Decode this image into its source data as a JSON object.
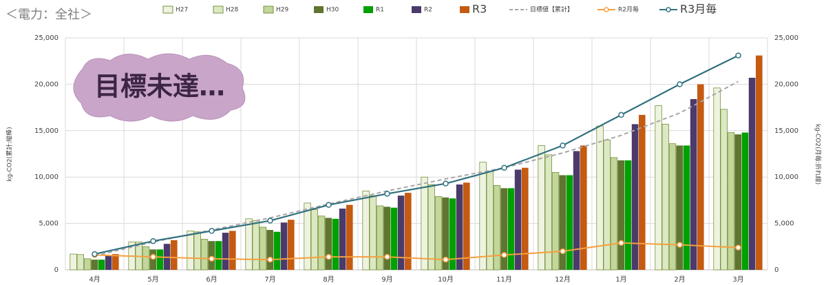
{
  "chart_data": {
    "type": "bar",
    "title": "＜電力：全社＞",
    "annotation": "目標未達…",
    "y_label": "kg-CO2(累計:縦棒)",
    "y2_label": "kg-CO2(月毎:折れ線)",
    "categories": [
      "4月",
      "5月",
      "6月",
      "7月",
      "8月",
      "9月",
      "10月",
      "11月",
      "12月",
      "1月",
      "2月",
      "3月"
    ],
    "series": [
      {
        "name": "H27",
        "type": "bar",
        "color": "#eef3df",
        "values": [
          1700,
          3000,
          4200,
          5500,
          7200,
          8500,
          10000,
          11600,
          13400,
          15500,
          17700,
          19600
        ]
      },
      {
        "name": "H28",
        "type": "bar",
        "color": "#dce8c3",
        "values": [
          1650,
          3000,
          4100,
          5300,
          6500,
          8000,
          9200,
          10600,
          12400,
          14000,
          15700,
          17300
        ]
      },
      {
        "name": "H29",
        "type": "bar",
        "color": "#c3d69b",
        "values": [
          1200,
          2500,
          3300,
          4600,
          5800,
          6900,
          7900,
          9100,
          10500,
          12100,
          13600,
          14800
        ]
      },
      {
        "name": "H30",
        "type": "bar",
        "color": "#5f7530",
        "values": [
          1100,
          2200,
          3100,
          4300,
          5600,
          6800,
          7800,
          8800,
          10200,
          11800,
          13400,
          14600
        ]
      },
      {
        "name": "R1",
        "type": "bar",
        "color": "#00a000",
        "values": [
          1100,
          2200,
          3100,
          4100,
          5500,
          6700,
          7700,
          8800,
          10200,
          11800,
          13400,
          14800
        ]
      },
      {
        "name": "R2",
        "type": "bar",
        "color": "#4b3a6a",
        "values": [
          1500,
          2800,
          4000,
          5100,
          6600,
          8000,
          9200,
          10800,
          12800,
          15700,
          18400,
          20700
        ]
      },
      {
        "name": "R3",
        "type": "bar",
        "color": "#c55a11",
        "values": [
          1700,
          3200,
          4200,
          5400,
          7000,
          8300,
          9400,
          11000,
          13400,
          16700,
          20000,
          23100
        ]
      },
      {
        "name": "目標値【累計】",
        "type": "line",
        "dash": true,
        "color": "#a6a6a6",
        "values": [
          1500,
          3000,
          4300,
          5600,
          7100,
          8500,
          9800,
          11000,
          12600,
          14500,
          16900,
          20300
        ]
      },
      {
        "name": "R2月毎",
        "type": "line",
        "axis": "y2",
        "marker": "circle",
        "color": "#f4a040",
        "values": [
          1600,
          1400,
          1200,
          1100,
          1400,
          1400,
          1100,
          1600,
          2000,
          2900,
          2700,
          2400
        ]
      },
      {
        "name": "R3月毎",
        "type": "line",
        "axis": "y2",
        "marker": "circle",
        "color": "#31707f",
        "values": [
          1700,
          3100,
          4200,
          5300,
          7000,
          8200,
          9300,
          11000,
          13400,
          16700,
          20000,
          23100
        ]
      }
    ],
    "ylim": [
      0,
      25000
    ],
    "yticks": [
      0,
      {
        "value": 5000,
        "label": "5,000"
      },
      {
        "value": 10000,
        "label": "10,000"
      },
      {
        "value": 15000,
        "label": "15,000"
      },
      {
        "value": 20000,
        "label": "20,000"
      },
      {
        "value": 25000,
        "label": "25,000"
      }
    ],
    "y2lim": [
      0,
      25000
    ],
    "y2ticks": [
      0,
      {
        "value": 5000,
        "label": "5,000"
      },
      {
        "value": 10000,
        "label": "10,000"
      },
      {
        "value": 15000,
        "label": "15,000"
      },
      {
        "value": 20000,
        "label": "20,000"
      },
      {
        "value": 25000,
        "label": "25,000"
      }
    ],
    "grid": true
  }
}
